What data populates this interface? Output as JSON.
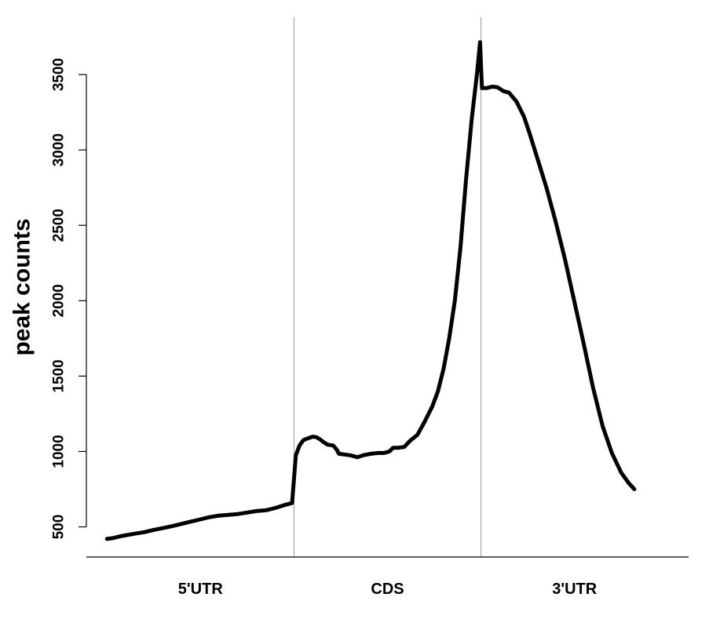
{
  "chart_data": {
    "type": "line",
    "title": "",
    "xlabel": "",
    "ylabel": "peak counts",
    "categories": [
      "5'UTR",
      "CDS",
      "3'UTR"
    ],
    "ylim": [
      300,
      3880
    ],
    "xlim": [
      -0.11,
      3.11
    ],
    "y_ticks": [
      500,
      1000,
      1500,
      2000,
      2500,
      3000,
      3500
    ],
    "y_tick_labels": [
      "500",
      "1000",
      "1500",
      "2000",
      "2500",
      "3000",
      "3500"
    ],
    "region_boundaries": [
      1,
      2
    ],
    "grid": false,
    "legend": "none",
    "line_color": "#000000",
    "divider_color": "#999999",
    "series": [
      {
        "points": [
          [
            0.0,
            420
          ],
          [
            0.03,
            425
          ],
          [
            0.08,
            440
          ],
          [
            0.15,
            455
          ],
          [
            0.2,
            465
          ],
          [
            0.25,
            480
          ],
          [
            0.3,
            492
          ],
          [
            0.35,
            505
          ],
          [
            0.4,
            520
          ],
          [
            0.45,
            535
          ],
          [
            0.5,
            550
          ],
          [
            0.55,
            565
          ],
          [
            0.6,
            575
          ],
          [
            0.65,
            580
          ],
          [
            0.7,
            585
          ],
          [
            0.75,
            595
          ],
          [
            0.8,
            605
          ],
          [
            0.85,
            610
          ],
          [
            0.9,
            625
          ],
          [
            0.95,
            645
          ],
          [
            0.99,
            658
          ],
          [
            1.01,
            975
          ],
          [
            1.03,
            1040
          ],
          [
            1.05,
            1075
          ],
          [
            1.08,
            1090
          ],
          [
            1.1,
            1098
          ],
          [
            1.12,
            1095
          ],
          [
            1.14,
            1080
          ],
          [
            1.16,
            1060
          ],
          [
            1.18,
            1045
          ],
          [
            1.21,
            1040
          ],
          [
            1.23,
            1010
          ],
          [
            1.24,
            985
          ],
          [
            1.27,
            980
          ],
          [
            1.3,
            975
          ],
          [
            1.34,
            962
          ],
          [
            1.37,
            975
          ],
          [
            1.41,
            985
          ],
          [
            1.45,
            990
          ],
          [
            1.48,
            990
          ],
          [
            1.51,
            1000
          ],
          [
            1.53,
            1025
          ],
          [
            1.56,
            1025
          ],
          [
            1.59,
            1030
          ],
          [
            1.62,
            1070
          ],
          [
            1.66,
            1110
          ],
          [
            1.7,
            1200
          ],
          [
            1.74,
            1300
          ],
          [
            1.77,
            1400
          ],
          [
            1.8,
            1550
          ],
          [
            1.83,
            1750
          ],
          [
            1.86,
            2000
          ],
          [
            1.89,
            2350
          ],
          [
            1.92,
            2800
          ],
          [
            1.95,
            3200
          ],
          [
            1.98,
            3520
          ],
          [
            1.995,
            3715
          ],
          [
            2.005,
            3410
          ],
          [
            2.03,
            3410
          ],
          [
            2.06,
            3420
          ],
          [
            2.09,
            3415
          ],
          [
            2.12,
            3390
          ],
          [
            2.15,
            3380
          ],
          [
            2.19,
            3320
          ],
          [
            2.23,
            3220
          ],
          [
            2.26,
            3110
          ],
          [
            2.3,
            2950
          ],
          [
            2.35,
            2750
          ],
          [
            2.4,
            2520
          ],
          [
            2.45,
            2270
          ],
          [
            2.5,
            1990
          ],
          [
            2.55,
            1710
          ],
          [
            2.6,
            1420
          ],
          [
            2.65,
            1170
          ],
          [
            2.7,
            990
          ],
          [
            2.75,
            860
          ],
          [
            2.79,
            790
          ],
          [
            2.82,
            750
          ]
        ]
      }
    ]
  }
}
